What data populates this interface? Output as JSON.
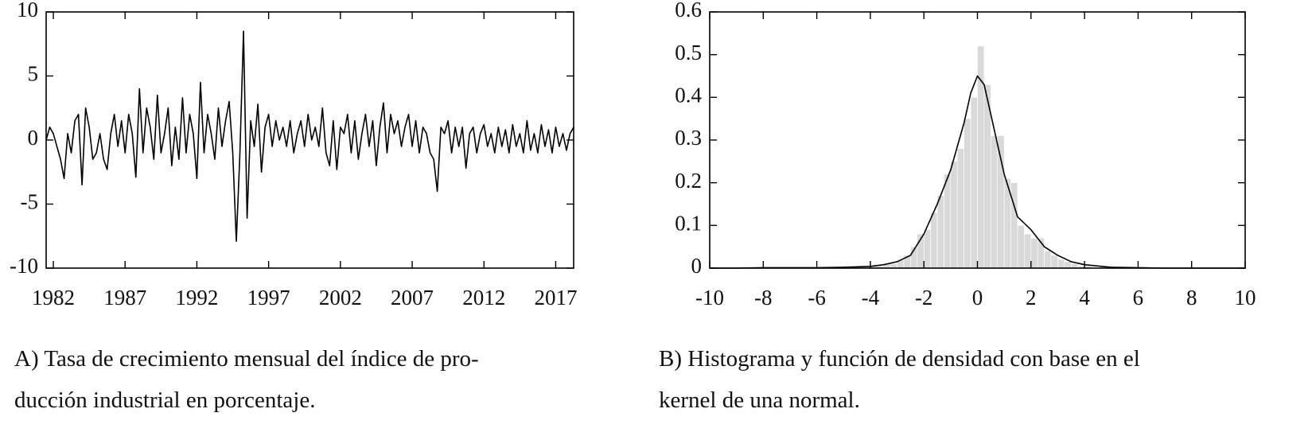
{
  "chart_data": [
    {
      "type": "line",
      "x": [
        1981.5,
        1981.75,
        1982,
        1982.25,
        1982.5,
        1982.75,
        1983,
        1983.25,
        1983.5,
        1983.75,
        1984,
        1984.25,
        1984.5,
        1984.75,
        1985,
        1985.25,
        1985.5,
        1985.75,
        1986,
        1986.25,
        1986.5,
        1986.75,
        1987,
        1987.25,
        1987.5,
        1987.75,
        1988,
        1988.25,
        1988.5,
        1988.75,
        1989,
        1989.25,
        1989.5,
        1989.75,
        1990,
        1990.25,
        1990.5,
        1990.75,
        1991,
        1991.25,
        1991.5,
        1991.75,
        1992,
        1992.25,
        1992.5,
        1992.75,
        1993,
        1993.25,
        1993.5,
        1993.75,
        1994,
        1994.25,
        1994.5,
        1994.75,
        1995,
        1995.25,
        1995.5,
        1995.75,
        1996,
        1996.25,
        1996.5,
        1996.75,
        1997,
        1997.25,
        1997.5,
        1997.75,
        1998,
        1998.25,
        1998.5,
        1998.75,
        1999,
        1999.25,
        1999.5,
        1999.75,
        2000,
        2000.25,
        2000.5,
        2000.75,
        2001,
        2001.25,
        2001.5,
        2001.75,
        2002,
        2002.25,
        2002.5,
        2002.75,
        2003,
        2003.25,
        2003.5,
        2003.75,
        2004,
        2004.25,
        2004.5,
        2004.75,
        2005,
        2005.25,
        2005.5,
        2005.75,
        2006,
        2006.25,
        2006.5,
        2006.75,
        2007,
        2007.25,
        2007.5,
        2007.75,
        2008,
        2008.25,
        2008.5,
        2008.75,
        2009,
        2009.25,
        2009.5,
        2009.75,
        2010,
        2010.25,
        2010.5,
        2010.75,
        2011,
        2011.25,
        2011.5,
        2011.75,
        2012,
        2012.25,
        2012.5,
        2012.75,
        2013,
        2013.25,
        2013.5,
        2013.75,
        2014,
        2014.25,
        2014.5,
        2014.75,
        2015,
        2015.25,
        2015.5,
        2015.75,
        2016,
        2016.25,
        2016.5,
        2016.75,
        2017,
        2017.25,
        2017.5,
        2017.75,
        2018,
        2018.25
      ],
      "values": [
        0,
        1,
        0.5,
        -0.5,
        -1.5,
        -3,
        0.5,
        -1,
        1.5,
        2,
        -3.5,
        2.5,
        1,
        -1.5,
        -1,
        0.5,
        -1.5,
        -2.3,
        0.5,
        2,
        -0.5,
        1.5,
        -1,
        2,
        0.5,
        -2.9,
        4,
        -1,
        2.5,
        1,
        -1.5,
        3.5,
        -1,
        0.5,
        2.5,
        -2,
        1,
        -1.5,
        3.3,
        -1,
        2,
        0.5,
        -3,
        4.5,
        -1,
        2,
        0.5,
        -1.5,
        2.5,
        -0.5,
        1.5,
        3,
        -1,
        -7.9,
        -1,
        8.5,
        -6.1,
        1.5,
        -0.5,
        2.8,
        -2.5,
        1,
        2,
        -0.5,
        1.5,
        0,
        1,
        -0.5,
        1.5,
        -1,
        0.5,
        1.5,
        -0.5,
        2,
        0,
        1,
        -0.5,
        2.5,
        -1,
        -2,
        1.5,
        -2.3,
        1,
        0.5,
        2,
        -1,
        1.5,
        -1.5,
        0.5,
        2,
        -0.5,
        1.5,
        -2,
        1,
        2.9,
        -1,
        2,
        0.5,
        1.5,
        -0.5,
        1,
        2,
        -0.5,
        1.5,
        -1,
        1,
        0.5,
        -1,
        -1.5,
        -4,
        1,
        0.5,
        1.5,
        -1,
        1,
        -0.5,
        1,
        -2.2,
        0.5,
        1,
        -1,
        0.5,
        1.2,
        -0.5,
        0.5,
        -1,
        1,
        -0.5,
        0.8,
        -1,
        1.2,
        -0.5,
        0.5,
        -1,
        1.5,
        -0.8,
        0.5,
        -1,
        1.2,
        -0.5,
        0.8,
        -1,
        1,
        -0.5,
        0.5,
        -0.8,
        0.5,
        1
      ],
      "color": "#000000",
      "xlim": [
        1981.5,
        2018.25
      ],
      "xticks": [
        1982,
        1987,
        1992,
        1997,
        2002,
        2007,
        2012,
        2017
      ],
      "ylim": [
        -10,
        10
      ],
      "yticks": [
        -10,
        -5,
        0,
        5,
        10
      ],
      "caption": [
        "A) Tasa de crecimiento mensual del índice de pro-",
        "ducción industrial en porcentaje."
      ]
    },
    {
      "type": "histogram",
      "bins": [
        -4,
        -3.75,
        -3.5,
        -3.25,
        -3,
        -2.75,
        -2.5,
        -2.25,
        -2,
        -1.75,
        -1.5,
        -1.25,
        -1,
        -0.75,
        -0.5,
        -0.25,
        0,
        0.25,
        0.5,
        0.75,
        1,
        1.25,
        1.5,
        1.75,
        2,
        2.25,
        2.5,
        2.75,
        3,
        3.25,
        3.5,
        3.75,
        4,
        4.25,
        4.5,
        4.75,
        5
      ],
      "values": [
        0.005,
        0.005,
        0.01,
        0.01,
        0.02,
        0.03,
        0.05,
        0.08,
        0.09,
        0.13,
        0.17,
        0.22,
        0.25,
        0.28,
        0.35,
        0.4,
        0.52,
        0.43,
        0.31,
        0.31,
        0.21,
        0.2,
        0.1,
        0.08,
        0.07,
        0.07,
        0.04,
        0.03,
        0.02,
        0.015,
        0.01,
        0.005,
        0.005,
        0,
        0.003,
        0
      ],
      "color": "#d9d9d9",
      "density": {
        "x": [
          -10,
          -9,
          -8,
          -7,
          -6,
          -5,
          -4,
          -3.5,
          -3,
          -2.5,
          -2,
          -1.5,
          -1,
          -0.5,
          -0.25,
          0,
          0.25,
          0.5,
          1,
          1.5,
          2,
          2.5,
          3,
          3.5,
          4,
          5,
          6,
          7,
          8,
          9,
          10
        ],
        "values": [
          0,
          0,
          0.001,
          0.001,
          0.001,
          0.002,
          0.004,
          0.008,
          0.015,
          0.03,
          0.08,
          0.15,
          0.23,
          0.34,
          0.41,
          0.45,
          0.43,
          0.36,
          0.22,
          0.12,
          0.09,
          0.05,
          0.03,
          0.015,
          0.008,
          0.002,
          0.001,
          0,
          0,
          0,
          0
        ],
        "color": "#000000"
      },
      "xlim": [
        -10,
        10
      ],
      "xticks": [
        -10,
        -8,
        -6,
        -4,
        -2,
        0,
        2,
        4,
        6,
        8,
        10
      ],
      "ylim": [
        0,
        0.6
      ],
      "yticks": [
        0,
        0.1,
        0.2,
        0.3,
        0.4,
        0.5,
        0.6
      ],
      "caption": [
        "B) Histograma y función de densidad con base en el",
        "kernel de una normal."
      ]
    }
  ]
}
